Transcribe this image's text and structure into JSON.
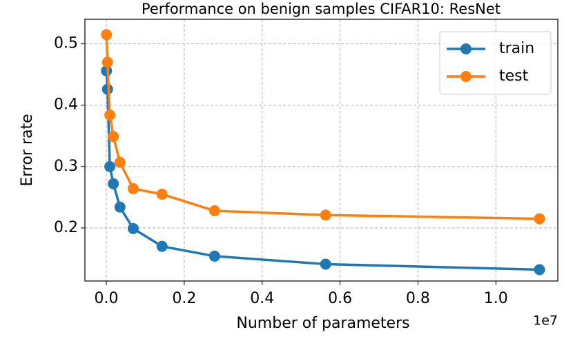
{
  "chart_data": {
    "type": "line",
    "title": "Performance on benign samples CIFAR10: ResNet",
    "x_label": "Number of parameters",
    "y_label": "Error rate",
    "x_offset_label": "1e7",
    "x": [
      0.0003,
      0.003,
      0.009,
      0.018,
      0.035,
      0.069,
      0.143,
      0.278,
      0.563,
      1.112
    ],
    "series": [
      {
        "name": "train",
        "color": "#1f77b4",
        "values": [
          0.456,
          0.426,
          0.3,
          0.272,
          0.234,
          0.199,
          0.17,
          0.154,
          0.141,
          0.132
        ]
      },
      {
        "name": "test",
        "color": "#ff7f0e",
        "values": [
          0.515,
          0.47,
          0.384,
          0.349,
          0.307,
          0.264,
          0.255,
          0.228,
          0.221,
          0.215
        ]
      }
    ],
    "xlim": [
      -0.055,
      1.159
    ],
    "ylim": [
      0.1135,
      0.54
    ],
    "xticks": [
      {
        "value": 0,
        "label": "0.0"
      },
      0.2,
      0.4,
      0.6,
      0.8,
      {
        "value": 1,
        "label": "1.0"
      }
    ],
    "yticks": [
      0.2,
      0.3,
      0.4,
      0.5
    ],
    "grid": true,
    "legend": "upper right"
  }
}
